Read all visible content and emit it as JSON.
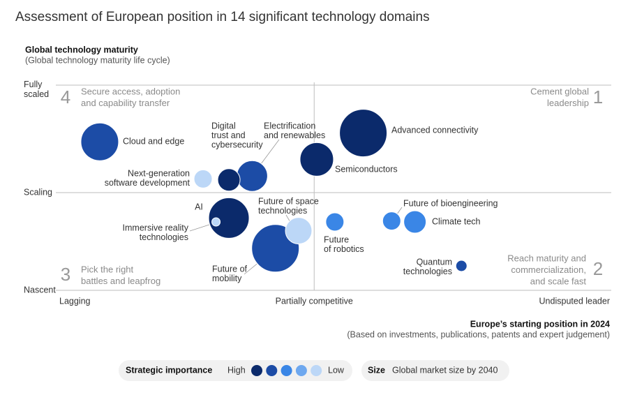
{
  "chart_data": {
    "type": "bubble",
    "title": "Assessment of European position in 14 significant technology domains",
    "y_label": "Global technology maturity",
    "y_sublabel": "(Global technology maturity life cycle)",
    "x_label": "Europe’s starting position in 2024",
    "x_sublabel": "(Based on investments, publications, patents and expert judgement)",
    "xlim": [
      0,
      2.15
    ],
    "ylim": [
      0,
      2.1
    ],
    "xticks": [
      {
        "value": 0,
        "label": "Lagging"
      },
      {
        "value": 1,
        "label": "Partially competitive"
      },
      {
        "value": 2.15,
        "label": "Undisputed leader"
      }
    ],
    "yticks": [
      {
        "value": 0,
        "label": "Nascent"
      },
      {
        "value": 1,
        "label": "Scaling"
      },
      {
        "value": 2.1,
        "label": "Fully scaled"
      }
    ],
    "grid": true,
    "importance_title": "Strategic importance",
    "importance_high": "High",
    "importance_low": "Low",
    "importance_colors": [
      "#0b2a6b",
      "#1c4ca6",
      "#3a86e6",
      "#6ea8ef",
      "#bcd7f7"
    ],
    "size_title": "Size",
    "size_label": "Global market size by 2040",
    "points": [
      {
        "label": [
          "Cloud and edge"
        ],
        "x": 0.17,
        "y": 1.52,
        "size": 729,
        "importance": 2
      },
      {
        "label": [
          "Next-generation",
          "software development"
        ],
        "x": 0.57,
        "y": 1.14,
        "size": 169,
        "importance": 5
      },
      {
        "label": [
          "Digital",
          "trust and",
          "cybersecurity"
        ],
        "x": 0.67,
        "y": 1.13,
        "size": 256,
        "importance": 1
      },
      {
        "label": [
          "Electrification",
          "and renewables"
        ],
        "x": 0.76,
        "y": 1.17,
        "size": 484,
        "importance": 2
      },
      {
        "label": [
          "Semiconductors"
        ],
        "x": 1.01,
        "y": 1.34,
        "size": 576,
        "importance": 1
      },
      {
        "label": [
          "Advanced connectivity"
        ],
        "x": 1.19,
        "y": 1.61,
        "size": 1156,
        "importance": 1
      },
      {
        "label": [
          "AI"
        ],
        "x": 0.67,
        "y": 0.74,
        "size": 841,
        "importance": 1
      },
      {
        "label": [
          "Immersive reality",
          "technologies"
        ],
        "x": 0.62,
        "y": 0.7,
        "size": 36,
        "importance": 5
      },
      {
        "label": [
          "Future of",
          "mobility"
        ],
        "x": 0.85,
        "y": 0.43,
        "size": 1156,
        "importance": 2
      },
      {
        "label": [
          "Future of space",
          "technologies"
        ],
        "x": 0.94,
        "y": 0.61,
        "size": 361,
        "importance": 5
      },
      {
        "label": [
          "Future",
          "of robotics"
        ],
        "x": 1.08,
        "y": 0.7,
        "size": 169,
        "importance": 3
      },
      {
        "label": [
          "Future of bioengineering"
        ],
        "x": 1.3,
        "y": 0.71,
        "size": 169,
        "importance": 3
      },
      {
        "label": [
          "Climate tech"
        ],
        "x": 1.39,
        "y": 0.7,
        "size": 256,
        "importance": 3
      },
      {
        "label": [
          "Quantum",
          "technologies"
        ],
        "x": 1.57,
        "y": 0.25,
        "size": 64,
        "importance": 2
      }
    ],
    "annotations": [
      {
        "number": 4,
        "text": [
          "Secure access, adoption",
          "and capability transfer"
        ]
      },
      {
        "number": 1,
        "text": [
          "Cement global",
          "leadership"
        ]
      },
      {
        "number": 3,
        "text": [
          "Pick the right",
          "battles and leapfrog"
        ]
      },
      {
        "number": 2,
        "text": [
          "Reach maturity and",
          "commercialization,",
          "and scale fast"
        ]
      }
    ]
  }
}
